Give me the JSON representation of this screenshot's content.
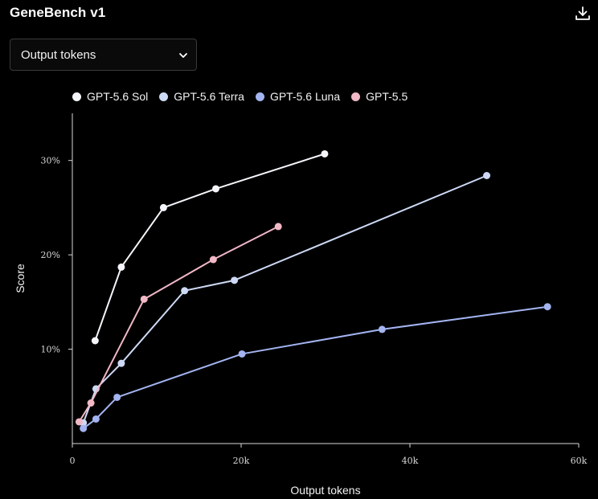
{
  "header": {
    "title": "GeneBench v1",
    "download_icon": "download-icon"
  },
  "metric_select": {
    "value": "Output tokens",
    "icon": "chevron-down-icon"
  },
  "chart_data": {
    "type": "line",
    "title": "",
    "xlabel": "Output tokens",
    "ylabel": "Score",
    "xlim": [
      0,
      60000
    ],
    "ylim": [
      0,
      35
    ],
    "x_ticks": [
      0,
      20000,
      40000,
      60000
    ],
    "x_tick_labels": [
      "0",
      "20k",
      "40k",
      "60k"
    ],
    "y_ticks": [
      10,
      20,
      30
    ],
    "y_tick_labels": [
      "10%",
      "20%",
      "30%"
    ],
    "grid": false,
    "legend_position": "top-left",
    "series": [
      {
        "name": "GPT-5.6 Sol",
        "color": "#f4f6fb",
        "points": [
          [
            2700,
            10.9
          ],
          [
            5800,
            18.7
          ],
          [
            10800,
            25.0
          ],
          [
            17000,
            27.0
          ],
          [
            29900,
            30.7
          ]
        ]
      },
      {
        "name": "GPT-5.6 Terra",
        "color": "#cdd9f5",
        "points": [
          [
            1300,
            2.2
          ],
          [
            2800,
            5.8
          ],
          [
            5800,
            8.5
          ],
          [
            13300,
            16.2
          ],
          [
            19200,
            17.3
          ],
          [
            49100,
            28.4
          ]
        ]
      },
      {
        "name": "GPT-5.6 Luna",
        "color": "#a3b4f1",
        "points": [
          [
            1300,
            1.6
          ],
          [
            2800,
            2.6
          ],
          [
            5300,
            4.9
          ],
          [
            20100,
            9.5
          ],
          [
            36700,
            12.1
          ],
          [
            56300,
            14.5
          ]
        ]
      },
      {
        "name": "GPT-5.5",
        "color": "#f1b8c6",
        "points": [
          [
            800,
            2.3
          ],
          [
            2200,
            4.3
          ],
          [
            8500,
            15.3
          ],
          [
            16700,
            19.5
          ],
          [
            24400,
            23.0
          ]
        ]
      }
    ]
  }
}
